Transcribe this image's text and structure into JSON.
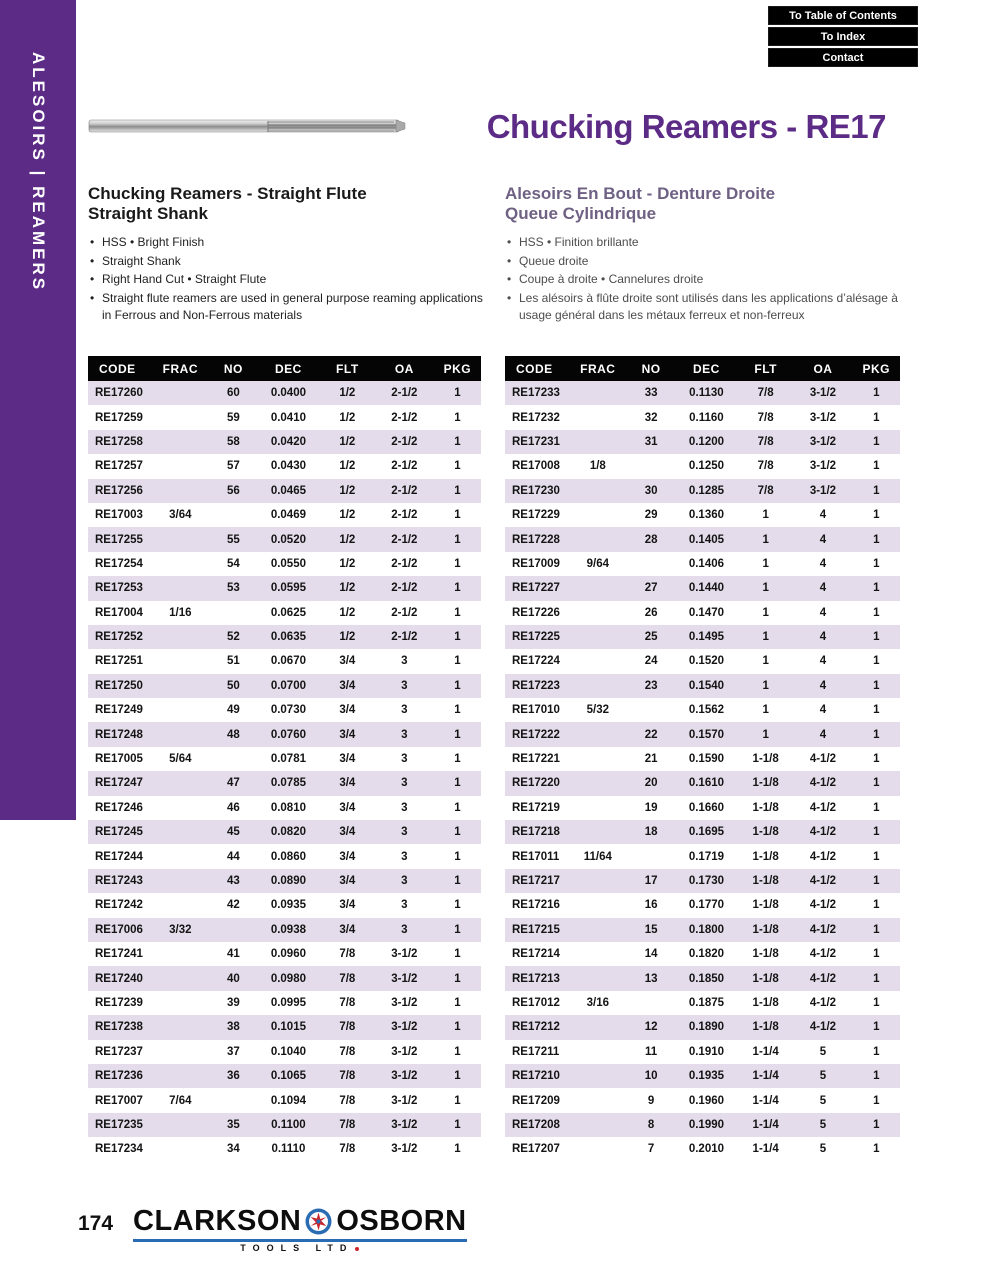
{
  "nav": {
    "buttons": [
      {
        "label": "To Table of Contents"
      },
      {
        "label": "To Index"
      },
      {
        "label": "Contact"
      }
    ]
  },
  "sidebar": {
    "label": "ALESOIRS   |   REAMERS"
  },
  "header": {
    "title": "Chucking Reamers - RE17"
  },
  "sections": {
    "english": {
      "heading_line1": "Chucking Reamers - Straight Flute",
      "heading_line2": "Straight Shank",
      "bullets": [
        "HSS  •  Bright Finish",
        "Straight Shank",
        "Right Hand Cut  •  Straight Flute",
        "Straight flute reamers are used in general purpose reaming applications in Ferrous and Non-Ferrous materials"
      ]
    },
    "french": {
      "heading_line1": "Alesoirs En Bout - Denture Droite",
      "heading_line2": "Queue Cylindrique",
      "bullets": [
        "HSS • Finition brillante",
        "Queue droite",
        "Coupe à droite • Cannelures droite",
        "Les alésoirs à flûte droite sont utilisés dans les applications d’alésage à usage général dans les métaux ferreux et non-ferreux"
      ]
    }
  },
  "table": {
    "headers": [
      "CODE",
      "FRAC",
      "NO",
      "DEC",
      "FLT",
      "OA",
      "PKG"
    ],
    "left_rows": [
      [
        "RE17260",
        "",
        "60",
        "0.0400",
        "1/2",
        "2-1/2",
        "1"
      ],
      [
        "RE17259",
        "",
        "59",
        "0.0410",
        "1/2",
        "2-1/2",
        "1"
      ],
      [
        "RE17258",
        "",
        "58",
        "0.0420",
        "1/2",
        "2-1/2",
        "1"
      ],
      [
        "RE17257",
        "",
        "57",
        "0.0430",
        "1/2",
        "2-1/2",
        "1"
      ],
      [
        "RE17256",
        "",
        "56",
        "0.0465",
        "1/2",
        "2-1/2",
        "1"
      ],
      [
        "RE17003",
        "3/64",
        "",
        "0.0469",
        "1/2",
        "2-1/2",
        "1"
      ],
      [
        "RE17255",
        "",
        "55",
        "0.0520",
        "1/2",
        "2-1/2",
        "1"
      ],
      [
        "RE17254",
        "",
        "54",
        "0.0550",
        "1/2",
        "2-1/2",
        "1"
      ],
      [
        "RE17253",
        "",
        "53",
        "0.0595",
        "1/2",
        "2-1/2",
        "1"
      ],
      [
        "RE17004",
        "1/16",
        "",
        "0.0625",
        "1/2",
        "2-1/2",
        "1"
      ],
      [
        "RE17252",
        "",
        "52",
        "0.0635",
        "1/2",
        "2-1/2",
        "1"
      ],
      [
        "RE17251",
        "",
        "51",
        "0.0670",
        "3/4",
        "3",
        "1"
      ],
      [
        "RE17250",
        "",
        "50",
        "0.0700",
        "3/4",
        "3",
        "1"
      ],
      [
        "RE17249",
        "",
        "49",
        "0.0730",
        "3/4",
        "3",
        "1"
      ],
      [
        "RE17248",
        "",
        "48",
        "0.0760",
        "3/4",
        "3",
        "1"
      ],
      [
        "RE17005",
        "5/64",
        "",
        "0.0781",
        "3/4",
        "3",
        "1"
      ],
      [
        "RE17247",
        "",
        "47",
        "0.0785",
        "3/4",
        "3",
        "1"
      ],
      [
        "RE17246",
        "",
        "46",
        "0.0810",
        "3/4",
        "3",
        "1"
      ],
      [
        "RE17245",
        "",
        "45",
        "0.0820",
        "3/4",
        "3",
        "1"
      ],
      [
        "RE17244",
        "",
        "44",
        "0.0860",
        "3/4",
        "3",
        "1"
      ],
      [
        "RE17243",
        "",
        "43",
        "0.0890",
        "3/4",
        "3",
        "1"
      ],
      [
        "RE17242",
        "",
        "42",
        "0.0935",
        "3/4",
        "3",
        "1"
      ],
      [
        "RE17006",
        "3/32",
        "",
        "0.0938",
        "3/4",
        "3",
        "1"
      ],
      [
        "RE17241",
        "",
        "41",
        "0.0960",
        "7/8",
        "3-1/2",
        "1"
      ],
      [
        "RE17240",
        "",
        "40",
        "0.0980",
        "7/8",
        "3-1/2",
        "1"
      ],
      [
        "RE17239",
        "",
        "39",
        "0.0995",
        "7/8",
        "3-1/2",
        "1"
      ],
      [
        "RE17238",
        "",
        "38",
        "0.1015",
        "7/8",
        "3-1/2",
        "1"
      ],
      [
        "RE17237",
        "",
        "37",
        "0.1040",
        "7/8",
        "3-1/2",
        "1"
      ],
      [
        "RE17236",
        "",
        "36",
        "0.1065",
        "7/8",
        "3-1/2",
        "1"
      ],
      [
        "RE17007",
        "7/64",
        "",
        "0.1094",
        "7/8",
        "3-1/2",
        "1"
      ],
      [
        "RE17235",
        "",
        "35",
        "0.1100",
        "7/8",
        "3-1/2",
        "1"
      ],
      [
        "RE17234",
        "",
        "34",
        "0.1110",
        "7/8",
        "3-1/2",
        "1"
      ]
    ],
    "right_rows": [
      [
        "RE17233",
        "",
        "33",
        "0.1130",
        "7/8",
        "3-1/2",
        "1"
      ],
      [
        "RE17232",
        "",
        "32",
        "0.1160",
        "7/8",
        "3-1/2",
        "1"
      ],
      [
        "RE17231",
        "",
        "31",
        "0.1200",
        "7/8",
        "3-1/2",
        "1"
      ],
      [
        "RE17008",
        "1/8",
        "",
        "0.1250",
        "7/8",
        "3-1/2",
        "1"
      ],
      [
        "RE17230",
        "",
        "30",
        "0.1285",
        "7/8",
        "3-1/2",
        "1"
      ],
      [
        "RE17229",
        "",
        "29",
        "0.1360",
        "1",
        "4",
        "1"
      ],
      [
        "RE17228",
        "",
        "28",
        "0.1405",
        "1",
        "4",
        "1"
      ],
      [
        "RE17009",
        "9/64",
        "",
        "0.1406",
        "1",
        "4",
        "1"
      ],
      [
        "RE17227",
        "",
        "27",
        "0.1440",
        "1",
        "4",
        "1"
      ],
      [
        "RE17226",
        "",
        "26",
        "0.1470",
        "1",
        "4",
        "1"
      ],
      [
        "RE17225",
        "",
        "25",
        "0.1495",
        "1",
        "4",
        "1"
      ],
      [
        "RE17224",
        "",
        "24",
        "0.1520",
        "1",
        "4",
        "1"
      ],
      [
        "RE17223",
        "",
        "23",
        "0.1540",
        "1",
        "4",
        "1"
      ],
      [
        "RE17010",
        "5/32",
        "",
        "0.1562",
        "1",
        "4",
        "1"
      ],
      [
        "RE17222",
        "",
        "22",
        "0.1570",
        "1",
        "4",
        "1"
      ],
      [
        "RE17221",
        "",
        "21",
        "0.1590",
        "1-1/8",
        "4-1/2",
        "1"
      ],
      [
        "RE17220",
        "",
        "20",
        "0.1610",
        "1-1/8",
        "4-1/2",
        "1"
      ],
      [
        "RE17219",
        "",
        "19",
        "0.1660",
        "1-1/8",
        "4-1/2",
        "1"
      ],
      [
        "RE17218",
        "",
        "18",
        "0.1695",
        "1-1/8",
        "4-1/2",
        "1"
      ],
      [
        "RE17011",
        "11/64",
        "",
        "0.1719",
        "1-1/8",
        "4-1/2",
        "1"
      ],
      [
        "RE17217",
        "",
        "17",
        "0.1730",
        "1-1/8",
        "4-1/2",
        "1"
      ],
      [
        "RE17216",
        "",
        "16",
        "0.1770",
        "1-1/8",
        "4-1/2",
        "1"
      ],
      [
        "RE17215",
        "",
        "15",
        "0.1800",
        "1-1/8",
        "4-1/2",
        "1"
      ],
      [
        "RE17214",
        "",
        "14",
        "0.1820",
        "1-1/8",
        "4-1/2",
        "1"
      ],
      [
        "RE17213",
        "",
        "13",
        "0.1850",
        "1-1/8",
        "4-1/2",
        "1"
      ],
      [
        "RE17012",
        "3/16",
        "",
        "0.1875",
        "1-1/8",
        "4-1/2",
        "1"
      ],
      [
        "RE17212",
        "",
        "12",
        "0.1890",
        "1-1/8",
        "4-1/2",
        "1"
      ],
      [
        "RE17211",
        "",
        "11",
        "0.1910",
        "1-1/4",
        "5",
        "1"
      ],
      [
        "RE17210",
        "",
        "10",
        "0.1935",
        "1-1/4",
        "5",
        "1"
      ],
      [
        "RE17209",
        "",
        "9",
        "0.1960",
        "1-1/4",
        "5",
        "1"
      ],
      [
        "RE17208",
        "",
        "8",
        "0.1990",
        "1-1/4",
        "5",
        "1"
      ],
      [
        "RE17207",
        "",
        "7",
        "0.2010",
        "1-1/4",
        "5",
        "1"
      ]
    ]
  },
  "footer": {
    "page_number": "174",
    "brand_left": "CLARKSON",
    "brand_right": "OSBORN",
    "brand_sub": "TOOLS LTD"
  },
  "colors": {
    "purple": "#5c2b86",
    "french_heading": "#6f6183",
    "row_lavender": "#e4dcea",
    "table_header": "#050505",
    "logo_blue": "#2a6cb3",
    "logo_red": "#c9252c"
  }
}
